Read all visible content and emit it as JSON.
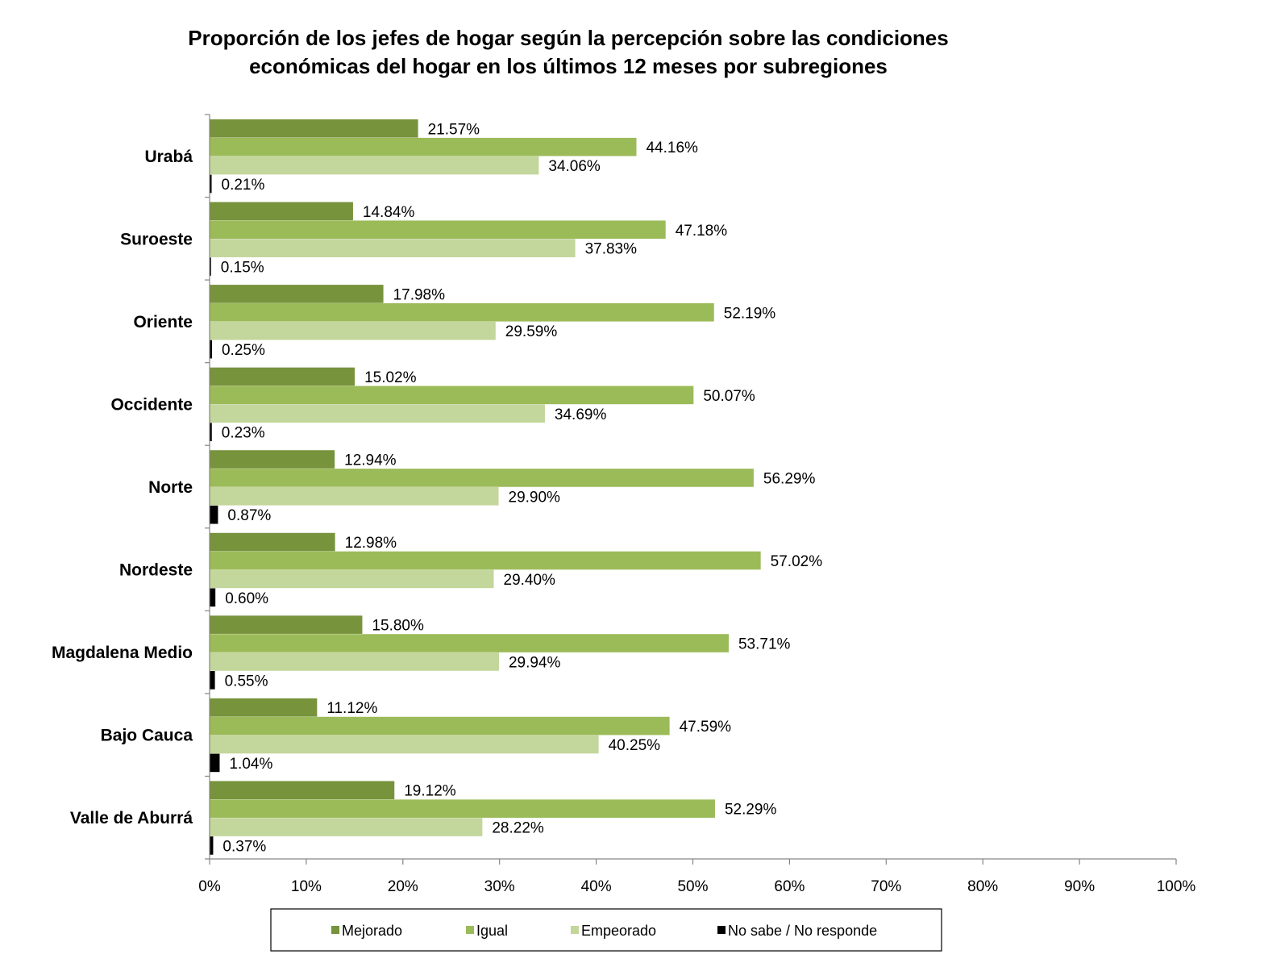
{
  "chart_data": {
    "type": "bar",
    "orientation": "horizontal",
    "title_lines": [
      "Proporción de los jefes de  hogar según la percepción sobre las condiciones",
      "económicas del hogar en los últimos 12 meses por subregiones"
    ],
    "categories": [
      "Urabá",
      "Suroeste",
      "Oriente",
      "Occidente",
      "Norte",
      "Nordeste",
      "Magdalena Medio",
      "Bajo Cauca",
      "Valle de Aburrá"
    ],
    "series": [
      {
        "name": "Mejorado",
        "color": "#77933C",
        "values": [
          21.57,
          14.84,
          17.98,
          15.02,
          12.94,
          12.98,
          15.8,
          11.12,
          19.12
        ],
        "labels": [
          "21.57%",
          "14.84%",
          "17.98%",
          "15.02%",
          "12.94%",
          "12.98%",
          "15.80%",
          "11.12%",
          "19.12%"
        ]
      },
      {
        "name": "Igual",
        "color": "#9BBB59",
        "values": [
          44.16,
          47.18,
          52.19,
          50.07,
          56.29,
          57.02,
          53.71,
          47.59,
          52.29
        ],
        "labels": [
          "44.16%",
          "47.18%",
          "52.19%",
          "50.07%",
          "56.29%",
          "57.02%",
          "53.71%",
          "47.59%",
          "52.29%"
        ]
      },
      {
        "name": "Empeorado",
        "color": "#C3D69B",
        "values": [
          34.06,
          37.83,
          29.59,
          34.69,
          29.9,
          29.4,
          29.94,
          40.25,
          28.22
        ],
        "labels": [
          "34.06%",
          "37.83%",
          "29.59%",
          "34.69%",
          "29.90%",
          "29.40%",
          "29.94%",
          "40.25%",
          "28.22%"
        ]
      },
      {
        "name": "No sabe / No responde",
        "color": "#000000",
        "values": [
          0.21,
          0.15,
          0.25,
          0.23,
          0.87,
          0.6,
          0.55,
          1.04,
          0.37
        ],
        "labels": [
          "0.21%",
          "0.15%",
          "0.25%",
          "0.23%",
          "0.87%",
          "0.60%",
          "0.55%",
          "1.04%",
          "0.37%"
        ]
      }
    ],
    "x_ticks": [
      "0%",
      "10%",
      "20%",
      "30%",
      "40%",
      "50%",
      "60%",
      "70%",
      "80%",
      "90%",
      "100%"
    ],
    "xlim": [
      0,
      100
    ],
    "grid": false,
    "legend_position": "bottom",
    "axis_color": "#868686",
    "xlabel": "",
    "ylabel": ""
  }
}
